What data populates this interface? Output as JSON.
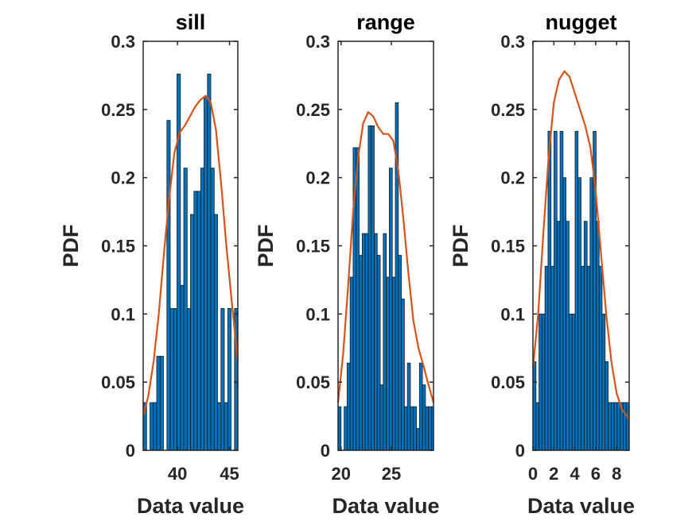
{
  "chart_data": [
    {
      "type": "bar",
      "title": "sill",
      "xlabel": "Data value",
      "ylabel": "PDF",
      "xlim": [
        36.7,
        45.8
      ],
      "ylim": [
        0,
        0.3
      ],
      "xticks": [
        40,
        45
      ],
      "yticks": [
        0,
        0.05,
        0.1,
        0.15,
        0.2,
        0.25,
        0.3
      ],
      "ytick_labels": [
        "0",
        "0.05",
        "0.1",
        "0.15",
        "0.2",
        "0.25",
        "0.3"
      ],
      "bin_edges": [
        36.7,
        37.03,
        37.35,
        37.68,
        38.0,
        38.33,
        38.65,
        38.98,
        39.3,
        39.63,
        39.95,
        40.28,
        40.6,
        40.93,
        41.25,
        41.58,
        41.9,
        42.23,
        42.55,
        42.88,
        43.2,
        43.53,
        43.85,
        44.18,
        44.5,
        44.83,
        45.15,
        45.48,
        45.8
      ],
      "values": [
        0.035,
        0,
        0.035,
        0.035,
        0.069,
        0.069,
        0,
        0.242,
        0.104,
        0.104,
        0.276,
        0.121,
        0.207,
        0.104,
        0.173,
        0.19,
        0.19,
        0.207,
        0.259,
        0.276,
        0.207,
        0.173,
        0.035,
        0.104,
        0.035,
        0.104,
        0,
        0.104
      ],
      "density_curve": {
        "x": [
          36.7,
          37.2,
          37.7,
          38.2,
          38.7,
          39.2,
          39.7,
          40.2,
          40.7,
          41.2,
          41.7,
          42.2,
          42.7,
          43.2,
          43.7,
          44.2,
          44.7,
          45.2,
          45.8
        ],
        "y": [
          0.025,
          0.04,
          0.065,
          0.1,
          0.145,
          0.185,
          0.218,
          0.233,
          0.238,
          0.245,
          0.252,
          0.257,
          0.26,
          0.255,
          0.235,
          0.195,
          0.15,
          0.11,
          0.065
        ]
      }
    },
    {
      "type": "bar",
      "title": "range",
      "xlabel": "Data value",
      "ylabel": "PDF",
      "xlim": [
        19.7,
        29.2
      ],
      "ylim": [
        0,
        0.3
      ],
      "xticks": [
        20,
        25
      ],
      "yticks": [
        0,
        0.05,
        0.1,
        0.15,
        0.2,
        0.25,
        0.3
      ],
      "ytick_labels": [
        "0",
        "0.05",
        "0.1",
        "0.15",
        "0.2",
        "0.25",
        "0.3"
      ],
      "bin_edges": [
        19.7,
        20.0,
        20.3,
        20.6,
        20.9,
        21.2,
        21.5,
        21.8,
        22.1,
        22.4,
        22.7,
        23.0,
        23.3,
        23.6,
        23.9,
        24.2,
        24.5,
        24.8,
        25.1,
        25.4,
        25.7,
        26.0,
        26.3,
        26.6,
        26.9,
        27.2,
        27.5,
        27.8,
        28.1,
        28.4,
        28.7,
        29.0,
        29.2
      ],
      "values": [
        0.032,
        0,
        0.032,
        0.064,
        0.127,
        0.222,
        0.222,
        0.143,
        0.159,
        0.159,
        0.238,
        0.238,
        0.159,
        0.143,
        0.048,
        0.159,
        0.127,
        0.207,
        0.127,
        0.255,
        0.143,
        0.111,
        0.032,
        0.064,
        0.032,
        0.032,
        0.016,
        0.064,
        0.048,
        0.032,
        0.032,
        0.032
      ],
      "density_curve": {
        "x": [
          19.7,
          20.2,
          20.7,
          21.2,
          21.7,
          22.2,
          22.7,
          23.2,
          23.7,
          24.2,
          24.7,
          25.2,
          25.7,
          26.2,
          26.7,
          27.2,
          27.7,
          28.2,
          28.7,
          29.2
        ],
        "y": [
          0.035,
          0.07,
          0.12,
          0.175,
          0.215,
          0.24,
          0.248,
          0.245,
          0.237,
          0.232,
          0.232,
          0.227,
          0.205,
          0.17,
          0.13,
          0.095,
          0.075,
          0.062,
          0.048,
          0.035
        ]
      }
    },
    {
      "type": "bar",
      "title": "nugget",
      "xlabel": "Data value",
      "ylabel": "PDF",
      "xlim": [
        0,
        9.2
      ],
      "ylim": [
        0,
        0.3
      ],
      "xticks": [
        0,
        2,
        4,
        6,
        8
      ],
      "yticks": [
        0,
        0.05,
        0.1,
        0.15,
        0.2,
        0.25,
        0.3
      ],
      "ytick_labels": [
        "0",
        "0.05",
        "0.1",
        "0.15",
        "0.2",
        "0.25",
        "0.3"
      ],
      "bin_edges": [
        0,
        0.29,
        0.58,
        0.86,
        1.15,
        1.44,
        1.73,
        2.01,
        2.3,
        2.59,
        2.88,
        3.16,
        3.45,
        3.74,
        4.03,
        4.31,
        4.6,
        4.89,
        5.18,
        5.46,
        5.75,
        6.04,
        6.33,
        6.61,
        6.9,
        7.19,
        7.48,
        7.76,
        8.05,
        8.34,
        8.63,
        8.91,
        9.2
      ],
      "values": [
        0.065,
        0.035,
        0.1,
        0.1,
        0.135,
        0.234,
        0.135,
        0.234,
        0.168,
        0.234,
        0.2,
        0.168,
        0.1,
        0.1,
        0.234,
        0.2,
        0.135,
        0.168,
        0.135,
        0.2,
        0.234,
        0.168,
        0.135,
        0.1,
        0.065,
        0.035,
        0.035,
        0.035,
        0.035,
        0.035,
        0.035,
        0.035
      ],
      "density_curve": {
        "x": [
          0,
          0.5,
          1.0,
          1.5,
          2.0,
          2.5,
          3.0,
          3.5,
          4.0,
          4.5,
          5.0,
          5.5,
          6.0,
          6.5,
          7.0,
          7.5,
          8.0,
          8.5,
          9.0,
          9.2
        ],
        "y": [
          0.06,
          0.1,
          0.16,
          0.215,
          0.255,
          0.272,
          0.278,
          0.274,
          0.262,
          0.25,
          0.238,
          0.222,
          0.19,
          0.145,
          0.1,
          0.065,
          0.042,
          0.03,
          0.025,
          0.023
        ]
      }
    }
  ]
}
